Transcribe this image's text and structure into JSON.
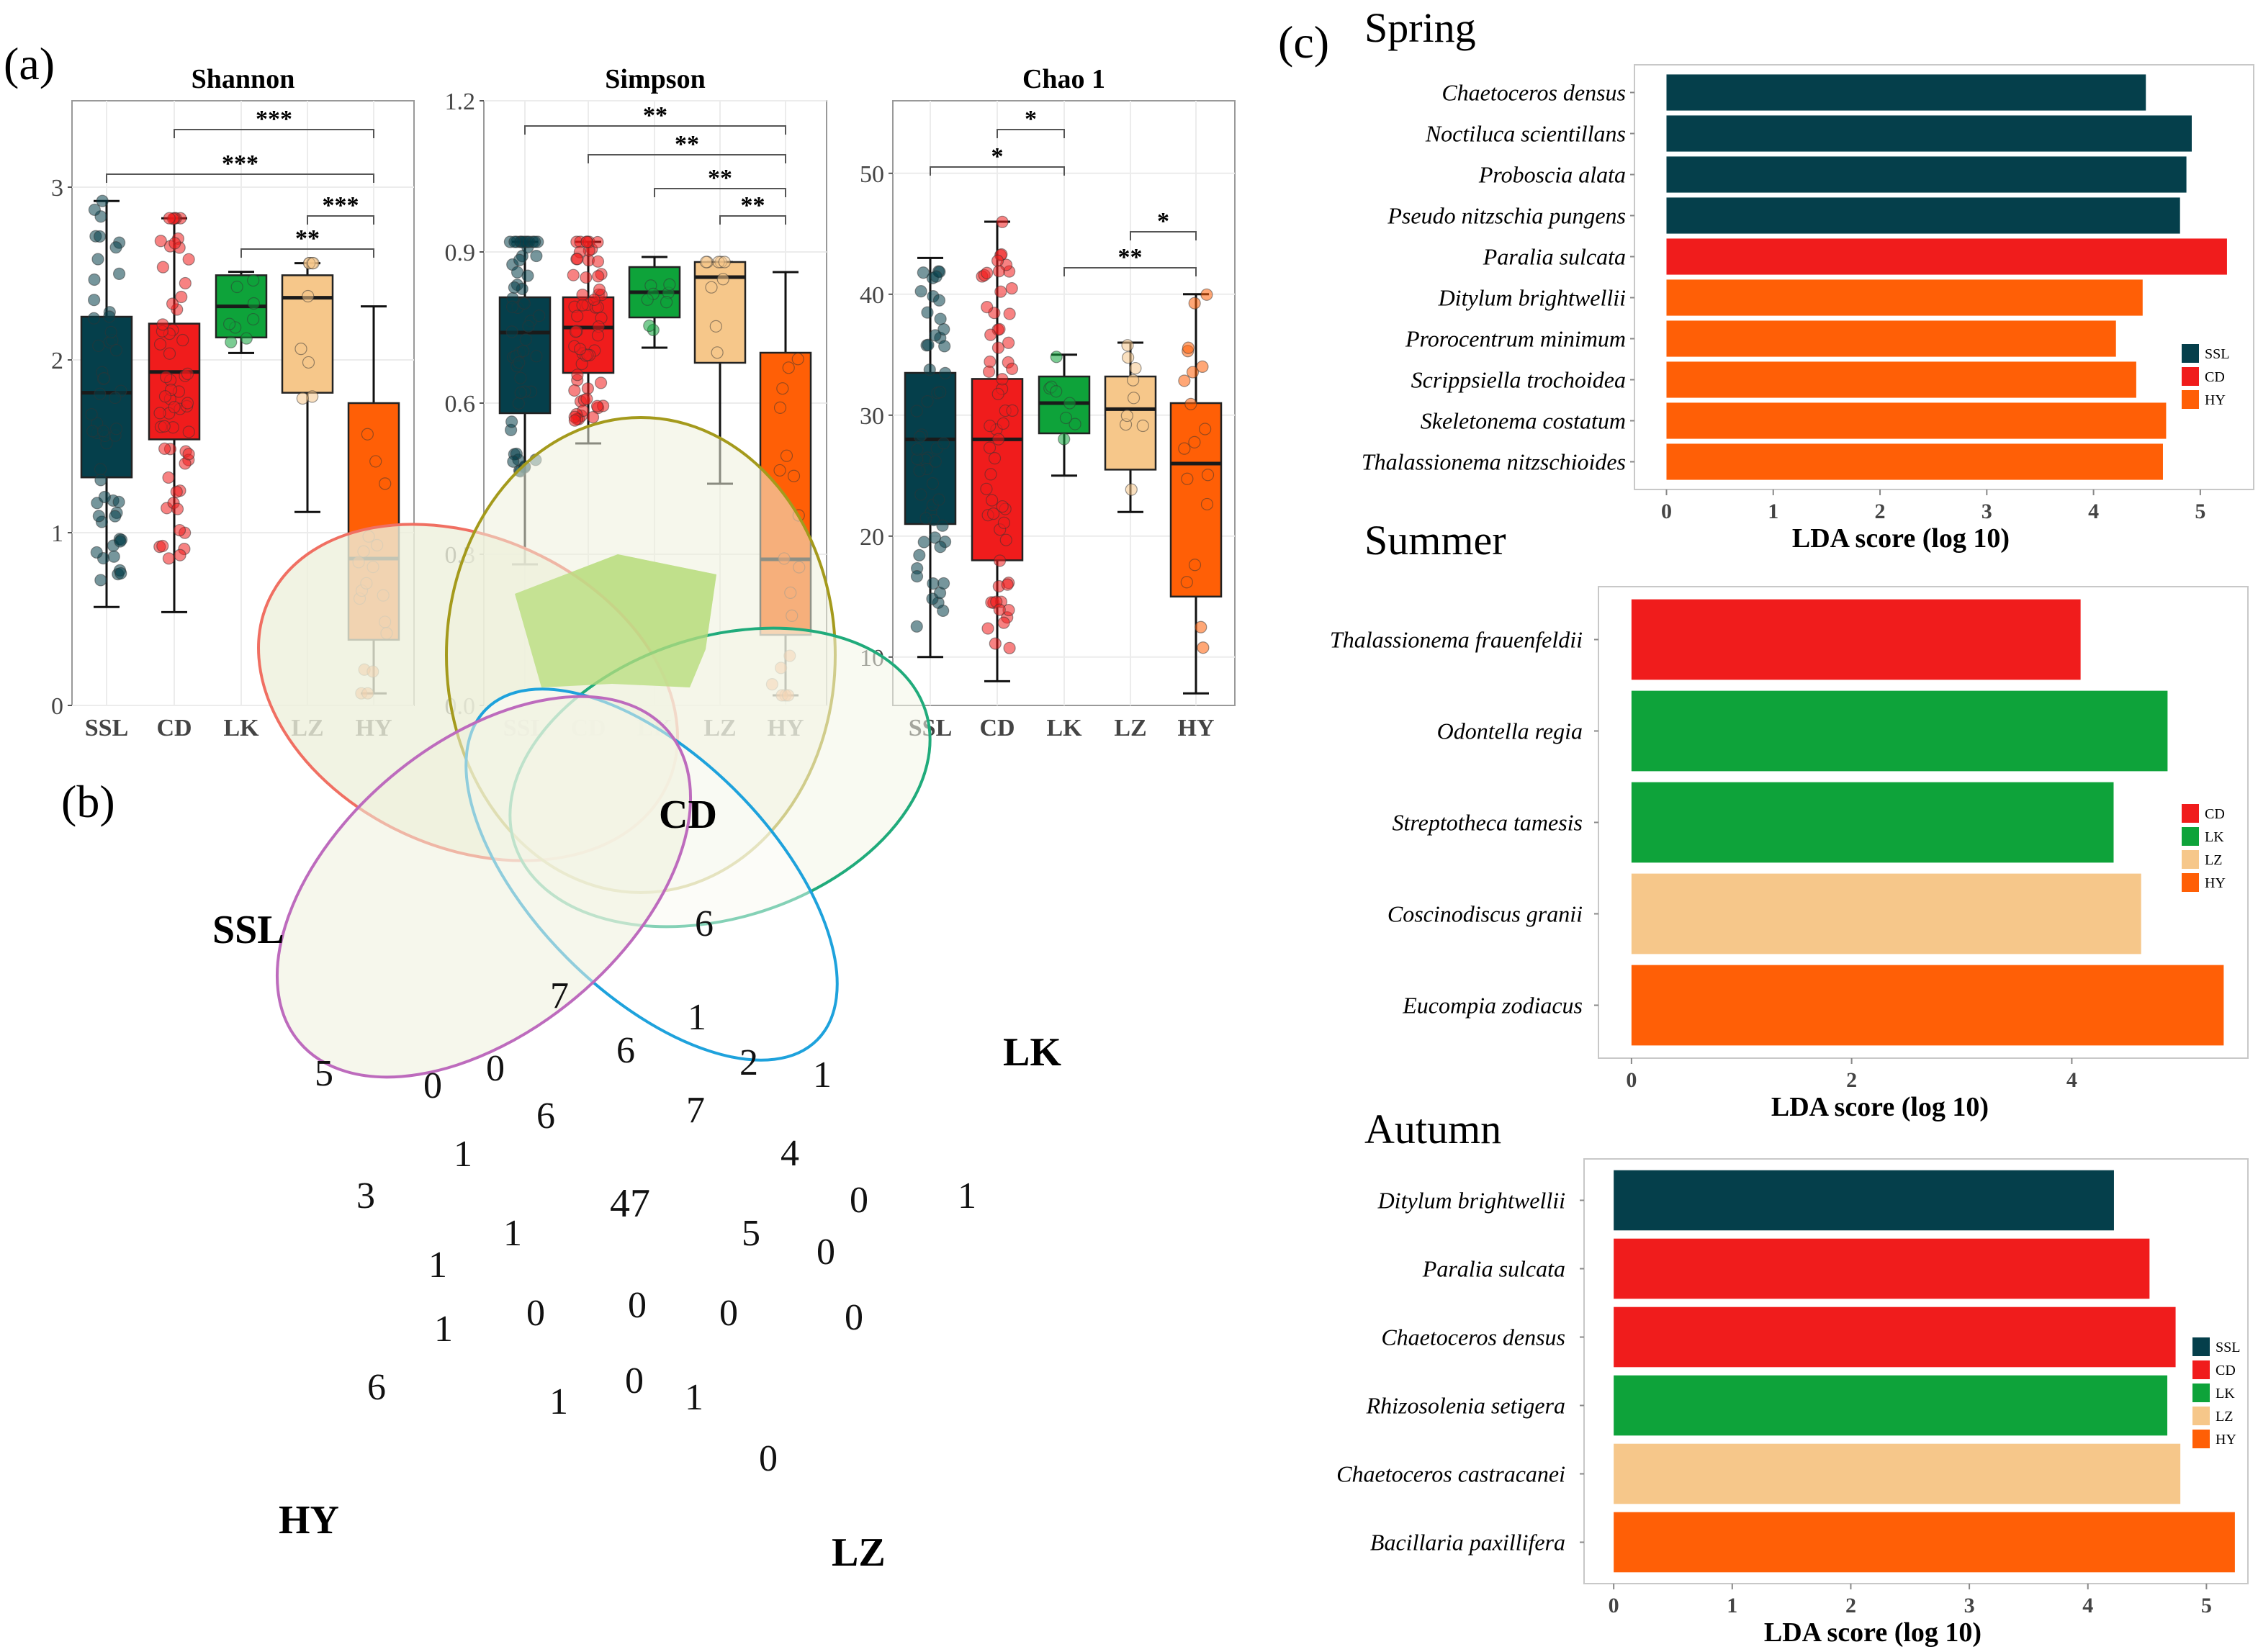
{
  "panels": {
    "a": "(a)",
    "b": "(b)",
    "c": "(c)"
  },
  "colors": {
    "SSL": "#053f4b",
    "CD": "#f01c1c",
    "LK": "#0ea33a",
    "LZ": "#f6c78a",
    "HY": "#ff5f06"
  },
  "venn": {
    "sets": {
      "SSL": "SSL",
      "CD": "CD",
      "LK": "LK",
      "LZ": "LZ",
      "HY": "HY"
    },
    "regions": [
      {
        "id": "ssl-only",
        "value": "5"
      },
      {
        "id": "cd-only",
        "value": "6"
      },
      {
        "id": "lk-only",
        "value": "1"
      },
      {
        "id": "lz-only",
        "value": "0"
      },
      {
        "id": "hy-only",
        "value": "6"
      },
      {
        "id": "r-7a",
        "value": "7"
      },
      {
        "id": "r-1a",
        "value": "1"
      },
      {
        "id": "r-6a",
        "value": "6"
      },
      {
        "id": "r-2",
        "value": "2"
      },
      {
        "id": "r-1b",
        "value": "1"
      },
      {
        "id": "r-0a",
        "value": "0"
      },
      {
        "id": "r-0b",
        "value": "0"
      },
      {
        "id": "r-6b",
        "value": "6"
      },
      {
        "id": "r-7b",
        "value": "7"
      },
      {
        "id": "r-4",
        "value": "4"
      },
      {
        "id": "r-1c",
        "value": "1"
      },
      {
        "id": "r-3",
        "value": "3"
      },
      {
        "id": "core",
        "value": "47"
      },
      {
        "id": "r-0c",
        "value": "0"
      },
      {
        "id": "r-1d",
        "value": "1"
      },
      {
        "id": "r-5",
        "value": "5"
      },
      {
        "id": "r-0d",
        "value": "0"
      },
      {
        "id": "r-1e",
        "value": "1"
      },
      {
        "id": "r-1f",
        "value": "1"
      },
      {
        "id": "r-0e",
        "value": "0"
      },
      {
        "id": "r-0f",
        "value": "0"
      },
      {
        "id": "r-0g",
        "value": "0"
      },
      {
        "id": "r-0h",
        "value": "0"
      },
      {
        "id": "r-1g",
        "value": "1"
      },
      {
        "id": "r-0i",
        "value": "0"
      },
      {
        "id": "r-1h",
        "value": "1"
      }
    ]
  },
  "chart_data": [
    {
      "id": "shannon",
      "type": "box",
      "title": "Shannon",
      "ylim": [
        0,
        3.5
      ],
      "yticks": [
        0,
        1,
        2,
        3
      ],
      "categories": [
        "SSL",
        "CD",
        "LK",
        "LZ",
        "HY"
      ],
      "boxes": [
        {
          "group": "SSL",
          "whisker_low": 0.57,
          "q1": 1.32,
          "median": 1.81,
          "q3": 2.25,
          "whisker_high": 2.92
        },
        {
          "group": "CD",
          "whisker_low": 0.54,
          "q1": 1.54,
          "median": 1.93,
          "q3": 2.21,
          "whisker_high": 2.82
        },
        {
          "group": "LK",
          "whisker_low": 2.04,
          "q1": 2.13,
          "median": 2.31,
          "q3": 2.49,
          "whisker_high": 2.51
        },
        {
          "group": "LZ",
          "whisker_low": 1.12,
          "q1": 1.81,
          "median": 2.36,
          "q3": 2.49,
          "whisker_high": 2.56
        },
        {
          "group": "HY",
          "whisker_low": 0.07,
          "q1": 0.38,
          "median": 0.85,
          "q3": 1.75,
          "whisker_high": 2.31
        }
      ],
      "comparisons": [
        {
          "from": "CD",
          "to": "HY",
          "label": "***"
        },
        {
          "from": "SSL",
          "to": "HY",
          "label": "***"
        },
        {
          "from": "LZ",
          "to": "HY",
          "label": "***"
        },
        {
          "from": "LK",
          "to": "HY",
          "label": "**"
        }
      ]
    },
    {
      "id": "simpson",
      "type": "box",
      "title": "Simpson",
      "ylim": [
        0,
        1.2
      ],
      "yticks": [
        0.0,
        0.3,
        0.6,
        0.9,
        1.2
      ],
      "ytick_labels": [
        "0.0",
        "0.3",
        "0.6",
        "0.9",
        "1.2"
      ],
      "categories": [
        "SSL",
        "CD",
        "LK",
        "LZ",
        "HY"
      ],
      "boxes": [
        {
          "group": "SSL",
          "whisker_low": 0.28,
          "q1": 0.58,
          "median": 0.74,
          "q3": 0.81,
          "whisker_high": 0.92
        },
        {
          "group": "CD",
          "whisker_low": 0.52,
          "q1": 0.66,
          "median": 0.75,
          "q3": 0.81,
          "whisker_high": 0.92
        },
        {
          "group": "LK",
          "whisker_low": 0.71,
          "q1": 0.77,
          "median": 0.82,
          "q3": 0.87,
          "whisker_high": 0.89
        },
        {
          "group": "LZ",
          "whisker_low": 0.44,
          "q1": 0.68,
          "median": 0.85,
          "q3": 0.88,
          "whisker_high": 0.88
        },
        {
          "group": "HY",
          "whisker_low": 0.02,
          "q1": 0.14,
          "median": 0.29,
          "q3": 0.7,
          "whisker_high": 0.86
        }
      ],
      "comparisons": [
        {
          "from": "SSL",
          "to": "HY",
          "label": "**"
        },
        {
          "from": "CD",
          "to": "HY",
          "label": "**"
        },
        {
          "from": "LK",
          "to": "HY",
          "label": "**"
        },
        {
          "from": "LZ",
          "to": "HY",
          "label": "**"
        }
      ]
    },
    {
      "id": "chao1",
      "type": "box",
      "title": "Chao 1",
      "ylim": [
        6,
        56
      ],
      "yticks": [
        10,
        20,
        30,
        40,
        50
      ],
      "categories": [
        "SSL",
        "CD",
        "LK",
        "LZ",
        "HY"
      ],
      "boxes": [
        {
          "group": "SSL",
          "whisker_low": 10,
          "q1": 21,
          "median": 28,
          "q3": 33.5,
          "whisker_high": 43
        },
        {
          "group": "CD",
          "whisker_low": 8,
          "q1": 18,
          "median": 28,
          "q3": 33,
          "whisker_high": 46
        },
        {
          "group": "LK",
          "whisker_low": 25,
          "q1": 28.5,
          "median": 31,
          "q3": 33.2,
          "whisker_high": 35
        },
        {
          "group": "LZ",
          "whisker_low": 22,
          "q1": 25.5,
          "median": 30.5,
          "q3": 33.2,
          "whisker_high": 36
        },
        {
          "group": "HY",
          "whisker_low": 7,
          "q1": 15,
          "median": 26,
          "q3": 31,
          "whisker_high": 40
        }
      ],
      "comparisons": [
        {
          "from": "CD",
          "to": "LK",
          "label": "*"
        },
        {
          "from": "SSL",
          "to": "LK",
          "label": "*"
        },
        {
          "from": "LZ",
          "to": "HY",
          "label": "*"
        },
        {
          "from": "LK",
          "to": "HY",
          "label": "**"
        }
      ]
    },
    {
      "id": "spring",
      "type": "bar",
      "orientation": "horizontal",
      "title": "Spring",
      "xlabel": "LDA score (log 10)",
      "xlim": [
        -0.3,
        5.5
      ],
      "xticks": [
        0,
        1,
        2,
        3,
        4,
        5
      ],
      "categories": [
        "Chaetoceros densus",
        "Noctiluca scientillans",
        "Proboscia alata",
        "Pseudo nitzschia pungens",
        "Paralia sulcata",
        "Ditylum brightwellii",
        "Prorocentrum minimum",
        "Scrippsiella trochoidea",
        "Skeletonema costatum",
        "Thalassionema nitzschioides"
      ],
      "values": [
        4.49,
        4.92,
        4.87,
        4.81,
        5.25,
        4.46,
        4.21,
        4.4,
        4.68,
        4.65
      ],
      "groups": [
        "SSL",
        "SSL",
        "SSL",
        "SSL",
        "CD",
        "HY",
        "HY",
        "HY",
        "HY",
        "HY"
      ],
      "legend": [
        "SSL",
        "CD",
        "HY"
      ]
    },
    {
      "id": "summer",
      "type": "bar",
      "orientation": "horizontal",
      "title": "Summer",
      "xlabel": "LDA score (log 10)",
      "xlim": [
        -0.3,
        5.6
      ],
      "xticks": [
        0,
        2,
        4
      ],
      "categories": [
        "Thalassionema frauenfeldii",
        "Odontella regia",
        "Streptotheca tamesis",
        "Coscinodiscus granii",
        "Eucompia zodiacus"
      ],
      "values": [
        4.08,
        4.87,
        4.38,
        4.63,
        5.38
      ],
      "groups": [
        "CD",
        "LK",
        "LK",
        "LZ",
        "HY"
      ],
      "legend": [
        "CD",
        "LK",
        "LZ",
        "HY"
      ]
    },
    {
      "id": "autumn",
      "type": "bar",
      "orientation": "horizontal",
      "title": "Autumn",
      "xlabel": "LDA score (log 10)",
      "xlim": [
        -0.25,
        5.35
      ],
      "xticks": [
        0,
        1,
        2,
        3,
        4,
        5
      ],
      "categories": [
        "Ditylum brightwellii",
        "Paralia sulcata",
        "Chaetoceros densus",
        "Rhizosolenia setigera",
        "Chaetoceros castracanei",
        "Bacillaria paxillifera"
      ],
      "values": [
        4.22,
        4.52,
        4.74,
        4.67,
        4.78,
        5.24
      ],
      "groups": [
        "SSL",
        "CD",
        "CD",
        "LK",
        "LZ",
        "HY"
      ],
      "legend": [
        "SSL",
        "CD",
        "LK",
        "LZ",
        "HY"
      ]
    }
  ]
}
